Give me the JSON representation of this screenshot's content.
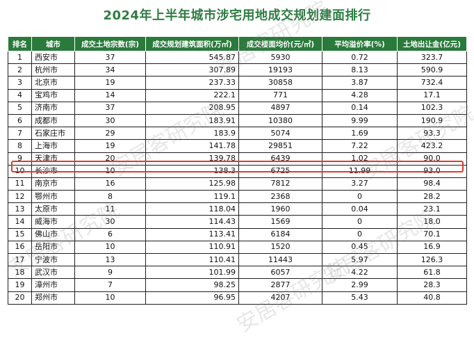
{
  "title": "2024年上半年城市涉宅用地成交规划建面排行",
  "table": {
    "headers": [
      "排名",
      "城市",
      "成交土地宗数(宗)",
      "成交规划建筑面积(万㎡)",
      "成交楼面均价(元/㎡)",
      "平均溢价率(%)",
      "土地出让金(亿元)"
    ],
    "rows": [
      {
        "rank": "1",
        "city": "西安市",
        "count": "37",
        "area": "545.87",
        "price": "5930",
        "premium": "0.72",
        "revenue": "323.7"
      },
      {
        "rank": "2",
        "city": "杭州市",
        "count": "34",
        "area": "307.89",
        "price": "19193",
        "premium": "8.13",
        "revenue": "590.9"
      },
      {
        "rank": "3",
        "city": "北京市",
        "count": "19",
        "area": "237.33",
        "price": "30858",
        "premium": "3.87",
        "revenue": "732.4"
      },
      {
        "rank": "4",
        "city": "宝鸡市",
        "count": "14",
        "area": "222.1",
        "price": "771",
        "premium": "4.28",
        "revenue": "17.1"
      },
      {
        "rank": "5",
        "city": "济南市",
        "count": "37",
        "area": "208.95",
        "price": "4897",
        "premium": "0.14",
        "revenue": "102.3"
      },
      {
        "rank": "6",
        "city": "成都市",
        "count": "30",
        "area": "183.91",
        "price": "10380",
        "premium": "9.99",
        "revenue": "190.9"
      },
      {
        "rank": "7",
        "city": "石家庄市",
        "count": "29",
        "area": "183.9",
        "price": "5074",
        "premium": "1.69",
        "revenue": "93.3"
      },
      {
        "rank": "8",
        "city": "上海市",
        "count": "19",
        "area": "141.78",
        "price": "29851",
        "premium": "7.22",
        "revenue": "423.2"
      },
      {
        "rank": "9",
        "city": "天津市",
        "count": "20",
        "area": "139.78",
        "price": "6439",
        "premium": "1.02",
        "revenue": "90.0"
      },
      {
        "rank": "10",
        "city": "长沙市",
        "count": "10",
        "area": "138.3",
        "price": "6725",
        "premium": "11.99",
        "revenue": "93.0"
      },
      {
        "rank": "11",
        "city": "南京市",
        "count": "16",
        "area": "125.98",
        "price": "7812",
        "premium": "3.27",
        "revenue": "98.4"
      },
      {
        "rank": "12",
        "city": "鄂州市",
        "count": "8",
        "area": "119.1",
        "price": "2368",
        "premium": "0",
        "revenue": "28.2"
      },
      {
        "rank": "13",
        "city": "太原市",
        "count": "11",
        "area": "118.04",
        "price": "1960",
        "premium": "0.04",
        "revenue": "23.1"
      },
      {
        "rank": "14",
        "city": "威海市",
        "count": "30",
        "area": "114.43",
        "price": "1569",
        "premium": "0",
        "revenue": "18.0"
      },
      {
        "rank": "15",
        "city": "佛山市",
        "count": "6",
        "area": "113.41",
        "price": "6184",
        "premium": "0",
        "revenue": "70.1"
      },
      {
        "rank": "16",
        "city": "岳阳市",
        "count": "10",
        "area": "110.91",
        "price": "1520",
        "premium": "0.45",
        "revenue": "16.9"
      },
      {
        "rank": "17",
        "city": "宁波市",
        "count": "13",
        "area": "110.41",
        "price": "11443",
        "premium": "5.97",
        "revenue": "126.3"
      },
      {
        "rank": "18",
        "city": "武汉市",
        "count": "9",
        "area": "101.99",
        "price": "6057",
        "premium": "4.22",
        "revenue": "61.8"
      },
      {
        "rank": "19",
        "city": "漳州市",
        "count": "7",
        "area": "98.25",
        "price": "2877",
        "premium": "2.99",
        "revenue": "28.3"
      },
      {
        "rank": "20",
        "city": "郑州市",
        "count": "10",
        "area": "96.95",
        "price": "4207",
        "premium": "5.43",
        "revenue": "40.8"
      }
    ],
    "highlighted_rank": "10"
  },
  "watermark": "安居客研究院",
  "colors": {
    "title": "#2e7d43",
    "header_bg": "#2a7a3b",
    "highlight_border": "#e23a2e"
  }
}
